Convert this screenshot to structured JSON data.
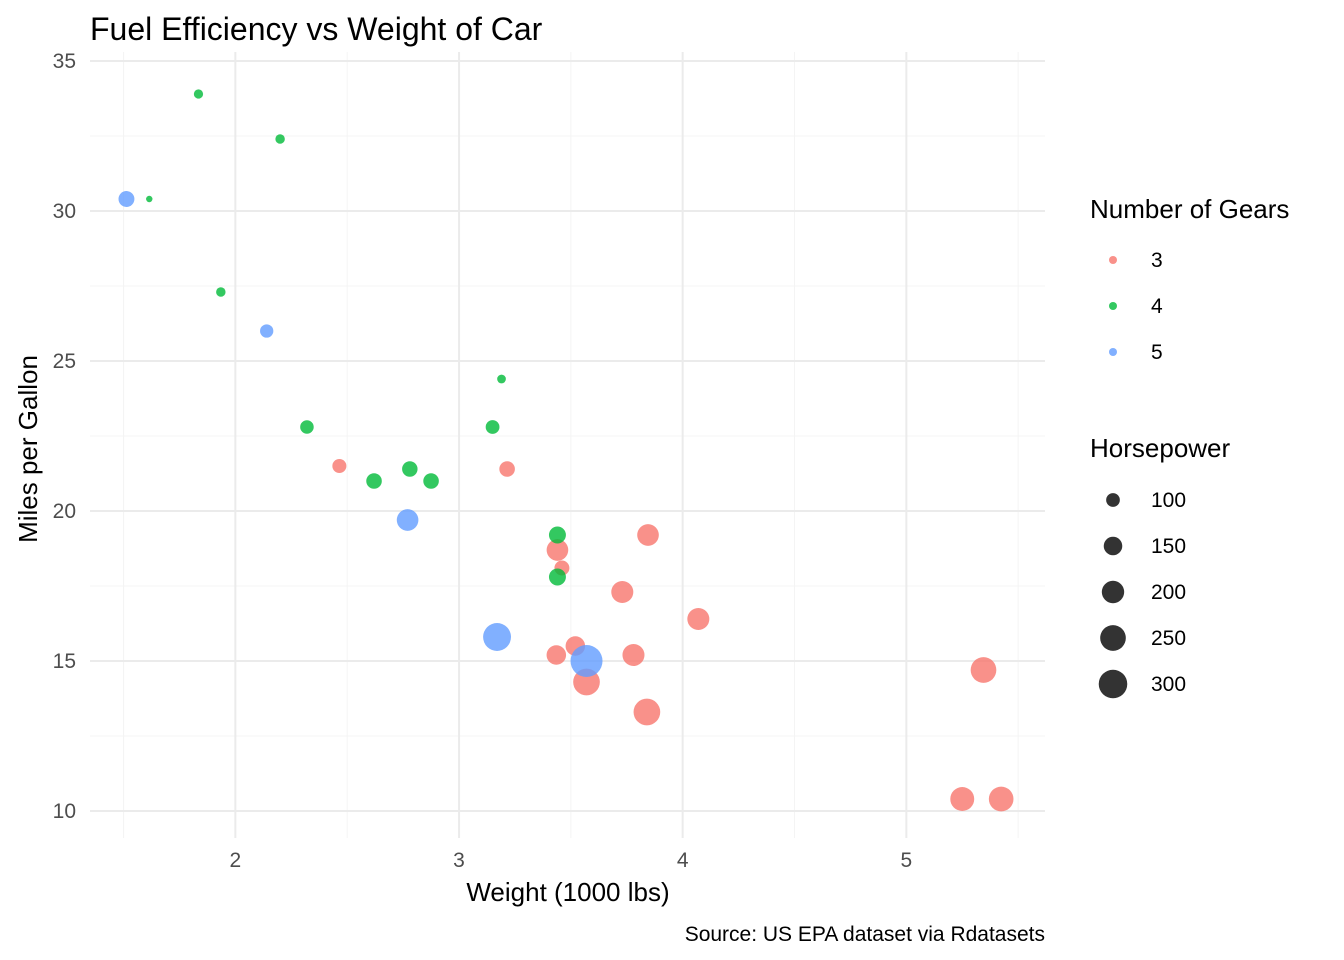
{
  "chart_data": {
    "type": "scatter",
    "title": "Fuel Efficiency vs Weight of Car",
    "xlabel": "Weight (1000 lbs)",
    "ylabel": "Miles per Gallon",
    "caption": "Source: US EPA dataset via Rdatasets",
    "xlim": [
      1.35,
      5.62
    ],
    "ylim": [
      9.1,
      35.3
    ],
    "x_ticks": [
      2,
      3,
      4,
      5
    ],
    "x_tick_labels": [
      "2",
      "3",
      "4",
      "5"
    ],
    "y_ticks": [
      10,
      15,
      20,
      25,
      30,
      35
    ],
    "y_tick_labels": [
      "10",
      "15",
      "20",
      "25",
      "30",
      "35"
    ],
    "grid": true,
    "theme": "minimal",
    "legend_position": "right",
    "color_legend": {
      "title": "Number of Gears",
      "entries": [
        {
          "label": "3",
          "color": "#F8766D"
        },
        {
          "label": "4",
          "color": "#00BA38"
        },
        {
          "label": "5",
          "color": "#619CFF"
        }
      ]
    },
    "size_legend": {
      "title": "Horsepower",
      "entries": [
        {
          "label": "100",
          "hp": 100
        },
        {
          "label": "150",
          "hp": 150
        },
        {
          "label": "200",
          "hp": 200
        },
        {
          "label": "250",
          "hp": 250
        },
        {
          "label": "300",
          "hp": 300
        }
      ],
      "hp_range": [
        52,
        335
      ]
    },
    "series": [
      {
        "name": "3",
        "color": "#F8766D",
        "points": [
          {
            "x": 3.215,
            "y": 21.4,
            "hp": 110
          },
          {
            "x": 3.44,
            "y": 18.7,
            "hp": 175
          },
          {
            "x": 3.46,
            "y": 18.1,
            "hp": 105
          },
          {
            "x": 3.57,
            "y": 14.3,
            "hp": 245
          },
          {
            "x": 4.07,
            "y": 16.4,
            "hp": 180
          },
          {
            "x": 3.73,
            "y": 17.3,
            "hp": 180
          },
          {
            "x": 3.78,
            "y": 15.2,
            "hp": 180
          },
          {
            "x": 5.25,
            "y": 10.4,
            "hp": 205
          },
          {
            "x": 5.424,
            "y": 10.4,
            "hp": 215
          },
          {
            "x": 5.345,
            "y": 14.7,
            "hp": 230
          },
          {
            "x": 2.465,
            "y": 21.5,
            "hp": 97
          },
          {
            "x": 3.52,
            "y": 15.5,
            "hp": 150
          },
          {
            "x": 3.435,
            "y": 15.2,
            "hp": 150
          },
          {
            "x": 3.84,
            "y": 13.3,
            "hp": 245
          },
          {
            "x": 3.845,
            "y": 19.2,
            "hp": 175
          }
        ]
      },
      {
        "name": "4",
        "color": "#00BA38",
        "points": [
          {
            "x": 2.62,
            "y": 21.0,
            "hp": 110
          },
          {
            "x": 2.875,
            "y": 21.0,
            "hp": 110
          },
          {
            "x": 2.32,
            "y": 22.8,
            "hp": 93
          },
          {
            "x": 3.19,
            "y": 24.4,
            "hp": 62
          },
          {
            "x": 3.15,
            "y": 22.8,
            "hp": 95
          },
          {
            "x": 3.44,
            "y": 19.2,
            "hp": 123
          },
          {
            "x": 3.44,
            "y": 17.8,
            "hp": 123
          },
          {
            "x": 2.2,
            "y": 32.4,
            "hp": 66
          },
          {
            "x": 1.615,
            "y": 30.4,
            "hp": 52
          },
          {
            "x": 1.835,
            "y": 33.9,
            "hp": 65
          },
          {
            "x": 1.935,
            "y": 27.3,
            "hp": 66
          },
          {
            "x": 2.78,
            "y": 21.4,
            "hp": 109
          }
        ]
      },
      {
        "name": "5",
        "color": "#619CFF",
        "points": [
          {
            "x": 2.14,
            "y": 26.0,
            "hp": 91
          },
          {
            "x": 1.513,
            "y": 30.4,
            "hp": 113
          },
          {
            "x": 3.17,
            "y": 15.8,
            "hp": 264
          },
          {
            "x": 2.77,
            "y": 19.7,
            "hp": 175
          },
          {
            "x": 3.57,
            "y": 15.0,
            "hp": 335
          }
        ]
      }
    ]
  }
}
